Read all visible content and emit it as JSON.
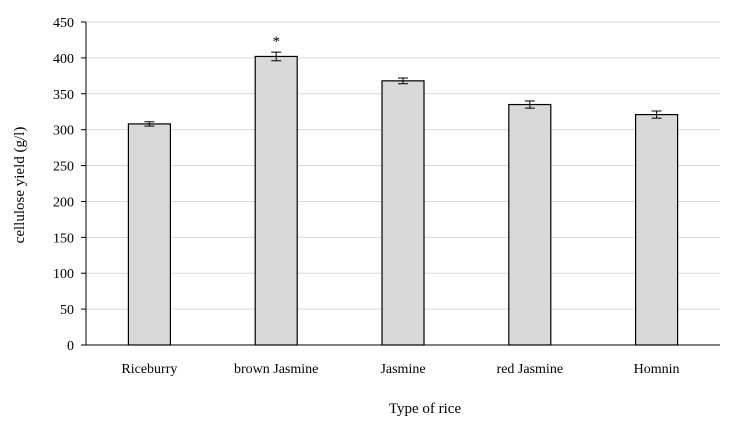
{
  "chart_data": {
    "type": "bar",
    "xlabel": "Type of rice",
    "ylabel": "cellulose yield (g/l)",
    "ylim": [
      0,
      450
    ],
    "yticks": [
      0,
      50,
      100,
      150,
      200,
      250,
      300,
      350,
      400,
      450
    ],
    "grid": true,
    "categories": [
      "Riceburry",
      "brown Jasmine",
      "Jasmine",
      "red Jasmine",
      "Homnin"
    ],
    "values": [
      308,
      402,
      368,
      335,
      321
    ],
    "errors": [
      3,
      6,
      4,
      5,
      5
    ],
    "annotations": [
      {
        "category": "brown Jasmine",
        "text": "*"
      }
    ],
    "colors": {
      "bar_fill": "#d9d9d9",
      "bar_stroke": "#000000",
      "grid": "#d9d9d9",
      "axis": "#000000"
    }
  }
}
